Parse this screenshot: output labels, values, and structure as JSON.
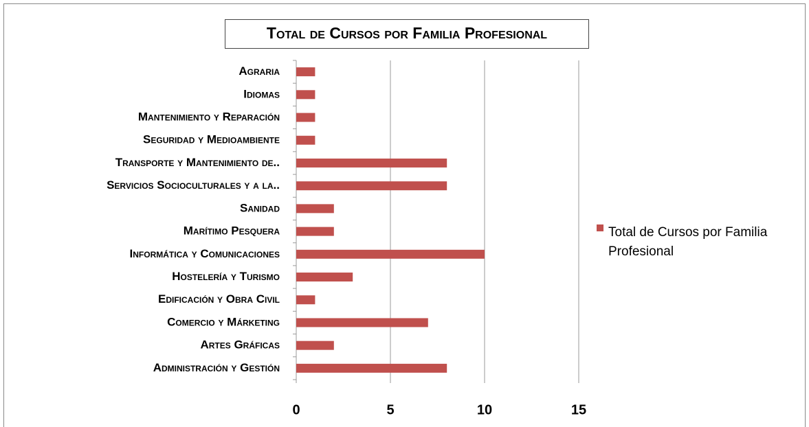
{
  "chart_data": {
    "type": "bar",
    "orientation": "horizontal",
    "title": "Total de Cursos por Familia Profesional",
    "categories": [
      "Agraria",
      "Idiomas",
      "Mantenimiento y Reparación",
      "Seguridad y Medioambiente",
      "Transporte y Mantenimiento de..",
      "Servicios Socioculturales y a la..",
      "Sanidad",
      "Marítimo Pesquera",
      "Informática y Comunicaciones",
      "Hostelería y Turismo",
      "Edificación y Obra Civil",
      "Comercio y Márketing",
      "Artes Gráficas",
      "Administración y Gestión"
    ],
    "series": [
      {
        "name": "Total de Cursos por Familia Profesional",
        "color": "#c0504d",
        "values": [
          1,
          1,
          1,
          1,
          8,
          8,
          2,
          2,
          10,
          3,
          1,
          7,
          2,
          8
        ]
      }
    ],
    "xlim": [
      0,
      15
    ],
    "xticks": [
      0,
      5,
      10,
      15
    ],
    "grid": true,
    "legend": "right"
  }
}
